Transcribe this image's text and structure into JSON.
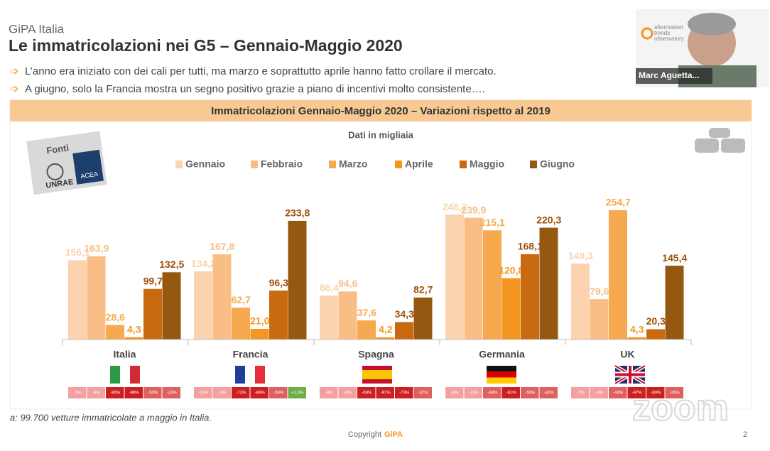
{
  "header": {
    "company": "GiPA Italia",
    "title": "Le immatricolazioni nei G5 – Gennaio-Maggio 2020"
  },
  "bullets": [
    "L’anno era iniziato con dei cali per tutti, ma marzo e soprattutto aprile hanno fatto crollare il mercato.",
    "A giugno, solo la Francia mostra un segno positivo grazie a piano di incentivi molto consistente…."
  ],
  "sources": {
    "label": "Fonti",
    "logos": [
      "UNRAE",
      "ACEA"
    ]
  },
  "chart_data": {
    "type": "bar",
    "title": "Immatricolazioni Gennaio-Maggio 2020 – Variazioni rispetto al 2019",
    "subtitle": "Dati in migliaia",
    "categories": [
      "Italia",
      "Francia",
      "Spagna",
      "Germania",
      "UK"
    ],
    "series": [
      {
        "name": "Gennaio",
        "color": "#fbd3ae",
        "values": [
          156.1,
          134.2,
          86.4,
          246.2,
          149.3
        ],
        "value_labels": [
          "156,1",
          "134,2",
          "86,4",
          "246,2",
          "149,3"
        ]
      },
      {
        "name": "Febbraio",
        "color": "#f9be86",
        "values": [
          163.9,
          167.8,
          94.6,
          239.9,
          79.6
        ],
        "value_labels": [
          "163,9",
          "167,8",
          "94,6",
          "239,9",
          "79,6"
        ]
      },
      {
        "name": "Marzo",
        "color": "#f7a94f",
        "values": [
          28.6,
          62.7,
          37.6,
          215.1,
          254.7
        ],
        "value_labels": [
          "28,6",
          "62,7",
          "37,6",
          "215,1",
          "254,7"
        ]
      },
      {
        "name": "Aprile",
        "color": "#f59522",
        "values": [
          4.3,
          21.0,
          4.2,
          120.8,
          4.3
        ],
        "value_labels": [
          "4,3",
          "21,0",
          "4,2",
          "120,8",
          "4,3"
        ]
      },
      {
        "name": "Maggio",
        "color": "#c96a10",
        "values": [
          99.7,
          96.3,
          34.3,
          168.1,
          20.3
        ],
        "value_labels": [
          "99,7",
          "96,3",
          "34,3",
          "168,1",
          "20,3"
        ]
      },
      {
        "name": "Giugno",
        "color": "#955811",
        "values": [
          132.5,
          233.8,
          82.7,
          220.3,
          145.4
        ],
        "value_labels": [
          "132,5",
          "233,8",
          "82,7",
          "220,3",
          "145,4"
        ]
      }
    ],
    "change_labels": [
      [
        "-5%",
        "-8%",
        "-85%",
        "-98%",
        "-50%",
        "-23%"
      ],
      [
        "-13%",
        "-3%",
        "-72%",
        "-89%",
        "-50%",
        "+1,3%"
      ],
      [
        "-8%",
        "-6%",
        "-69%",
        "-97%",
        "-73%",
        "-37%"
      ],
      [
        "-8%",
        "-11%",
        "-38%",
        "-61%",
        "-50%",
        "-32%"
      ],
      [
        "-7%",
        "-3%",
        "-44%",
        "-97%",
        "-89%",
        "-35%"
      ]
    ]
  },
  "footnote": "a: 99.700 vetture immatricolate a maggio in Italia.",
  "copyright": {
    "text": "Copyright",
    "brand": "GiPA"
  },
  "page_number": 2,
  "video": {
    "participant": "Marc Aguetta...",
    "badge": [
      "aftermarket",
      "trends",
      "observatory"
    ],
    "watermark": "zoom"
  }
}
